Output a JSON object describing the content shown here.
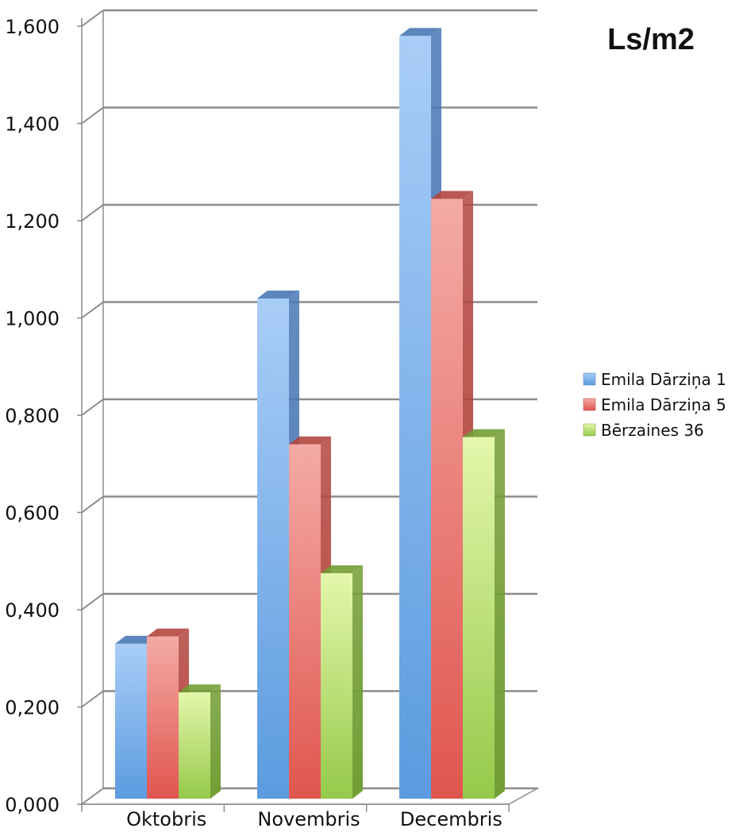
{
  "chart_data": {
    "type": "bar",
    "title": "Ls/m2",
    "title_color": "#1b75c9",
    "categories": [
      "Oktobris",
      "Novembris",
      "Decembris"
    ],
    "series": [
      {
        "name": "Emila Dārziņa 1",
        "values": [
          0.33,
          1.04,
          1.58
        ],
        "color": "#5b9bdf",
        "light": "#a9cdf7",
        "side": "#4a78b5"
      },
      {
        "name": "Emila Dārziņa 5",
        "values": [
          0.345,
          0.74,
          1.245
        ],
        "color": "#e0564f",
        "light": "#f4aaa5",
        "side": "#b4463f"
      },
      {
        "name": "Bērzaines 36",
        "values": [
          0.23,
          0.475,
          0.755
        ],
        "color": "#95c94a",
        "light": "#e4f7ac",
        "side": "#739d35"
      }
    ],
    "ylim": [
      0,
      1.6
    ],
    "yticks": [
      "0,000",
      "0,200",
      "0,400",
      "0,600",
      "0,800",
      "1,000",
      "1,200",
      "1,400",
      "1,600"
    ],
    "grid": true,
    "legend_position": "right",
    "xlabel": "",
    "ylabel": ""
  }
}
